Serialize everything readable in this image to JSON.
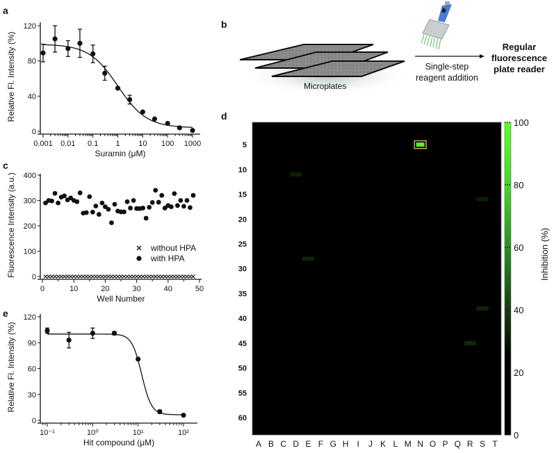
{
  "chart_data": [
    {
      "panel": "a",
      "type": "scatter",
      "xscale": "log",
      "xlabel": "Suramin (μM)",
      "ylabel": "Relative Fl. Intensity (%)",
      "xticks": [
        "0.001",
        "0.01",
        "0.1",
        "1",
        "10",
        "100",
        "1000"
      ],
      "yticks": [
        "0",
        "40",
        "80",
        "120"
      ],
      "ylim": [
        0,
        120
      ],
      "x": [
        0.001,
        0.003,
        0.01,
        0.03,
        0.1,
        0.3,
        1,
        3,
        10,
        30,
        100,
        300,
        1000
      ],
      "y": [
        89,
        105,
        94,
        100,
        88,
        66,
        49,
        36,
        22,
        14,
        9,
        4,
        1
      ],
      "yerr": [
        10,
        15,
        9,
        16,
        10,
        8,
        0,
        5,
        0,
        0,
        0,
        0,
        0
      ],
      "fit_line": true
    },
    {
      "panel": "c",
      "type": "scatter",
      "xlabel": "Well Number",
      "ylabel": "Fluorescence Intensity (a.u.)",
      "xticks": [
        "0",
        "10",
        "20",
        "30",
        "40",
        "50"
      ],
      "yticks": [
        "0",
        "100",
        "200",
        "300",
        "400"
      ],
      "xlim": [
        0,
        50
      ],
      "ylim": [
        0,
        400
      ],
      "legend_position": "center-right",
      "series": [
        {
          "name": "without HPA",
          "marker": "x",
          "values": [
            0,
            0,
            0,
            0,
            0,
            0,
            0,
            0,
            0,
            0,
            0,
            0,
            0,
            0,
            0,
            0,
            0,
            0,
            0,
            0,
            0,
            0,
            0,
            0,
            0,
            0,
            0,
            0,
            0,
            0,
            0,
            0,
            0,
            0,
            0,
            0,
            0,
            0,
            0,
            0,
            0,
            0,
            0,
            0,
            0,
            0,
            0,
            0
          ]
        },
        {
          "name": "with HPA",
          "marker": "circle",
          "values": [
            290,
            300,
            298,
            328,
            290,
            313,
            318,
            302,
            310,
            300,
            295,
            330,
            250,
            252,
            315,
            254,
            278,
            245,
            290,
            275,
            265,
            212,
            285,
            258,
            255,
            255,
            295,
            270,
            300,
            268,
            268,
            270,
            230,
            273,
            292,
            340,
            293,
            320,
            270,
            280,
            275,
            327,
            280,
            300,
            277,
            300,
            272,
            320
          ]
        }
      ]
    },
    {
      "panel": "e",
      "type": "scatter",
      "xscale": "log",
      "xlabel": "Hit compound (μM)",
      "ylabel": "Relative Fl. Intensity (%)",
      "xticks": [
        "10⁻¹",
        "10⁰",
        "10¹",
        "10²"
      ],
      "yticks": [
        "0",
        "30",
        "60",
        "90",
        "120"
      ],
      "ylim": [
        0,
        120
      ],
      "x": [
        0.1,
        0.3,
        1,
        3,
        10,
        30,
        100
      ],
      "y": [
        104,
        93,
        101,
        101,
        71,
        10,
        6
      ],
      "yerr": [
        3,
        9,
        6,
        2,
        0,
        2,
        0
      ],
      "fit_line": true
    },
    {
      "panel": "d",
      "type": "heatmap",
      "columns": [
        "A",
        "B",
        "C",
        "D",
        "E",
        "F",
        "G",
        "H",
        "I",
        "J",
        "K",
        "L",
        "M",
        "N",
        "O",
        "P",
        "Q",
        "R",
        "S",
        "T"
      ],
      "rows": 63,
      "yticks": [
        "5",
        "10",
        "15",
        "20",
        "25",
        "30",
        "35",
        "40",
        "45",
        "50",
        "55",
        "60"
      ],
      "colorbar_label": "Inhibition (%)",
      "colorbar_ticks": [
        "0",
        "20",
        "40",
        "60",
        "80",
        "100"
      ],
      "clim": [
        0,
        100
      ],
      "background_value": 0,
      "colormap": [
        "#000000",
        "#000000",
        "#153d0e",
        "#2a8f22",
        "#46d82a",
        "#5cff2e"
      ],
      "hits": [
        {
          "col": "N",
          "row": 5,
          "value": 95,
          "highlighted": true
        },
        {
          "col": "D",
          "row": 11,
          "value": 30
        },
        {
          "col": "S",
          "row": 16,
          "value": 30
        },
        {
          "col": "E",
          "row": 28,
          "value": 32
        },
        {
          "col": "S",
          "row": 38,
          "value": 32
        },
        {
          "col": "R",
          "row": 45,
          "value": 33
        }
      ],
      "highlight_color": "#c8a050"
    }
  ],
  "panel_b": {
    "label": "b",
    "plates_label": "Microplates",
    "step_label_1": "Single-step",
    "step_label_2": "reagent addition",
    "reader_label_1": "Regular",
    "reader_label_2": "fluorescence",
    "reader_label_3": "plate reader",
    "pipette_color": "#4a7bd0"
  },
  "panel_labels": {
    "a": "a",
    "c": "c",
    "d": "d",
    "e": "e"
  }
}
